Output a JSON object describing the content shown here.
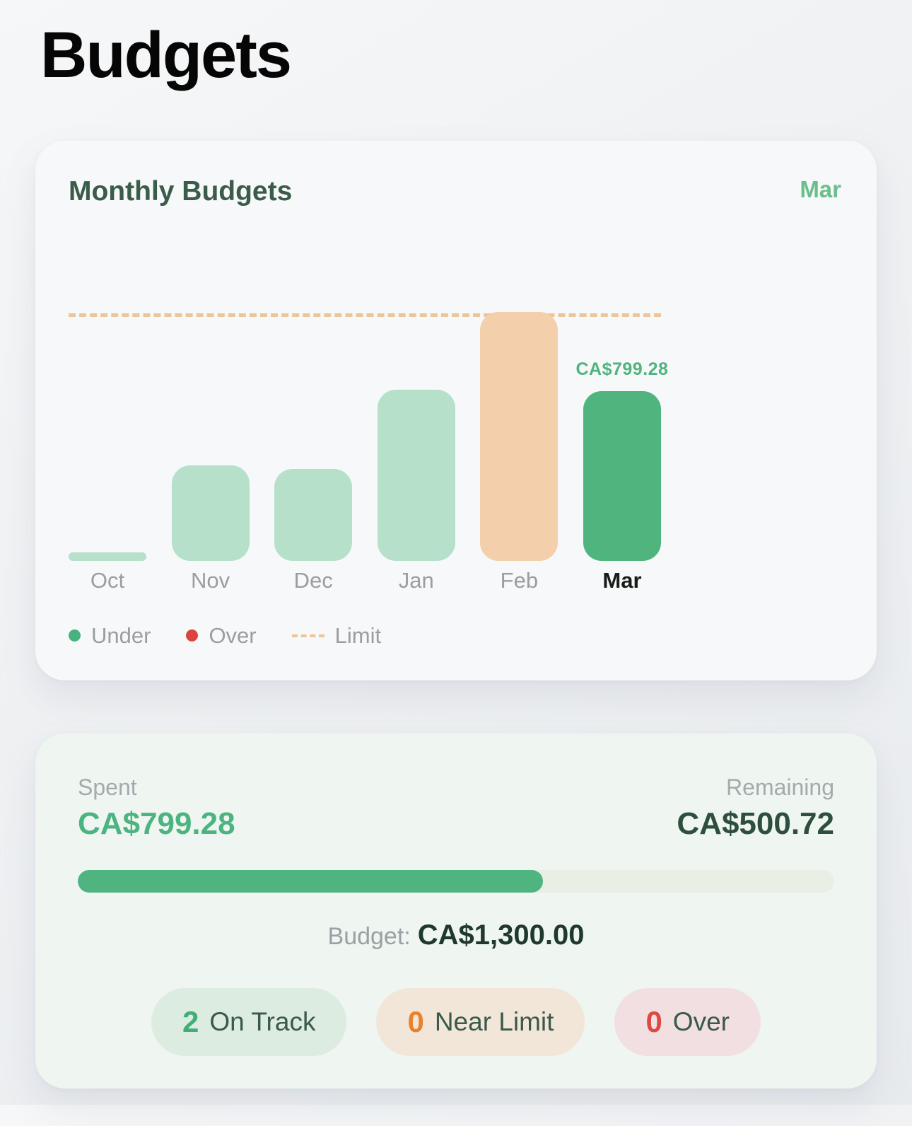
{
  "page": {
    "title": "Budgets"
  },
  "monthly_card": {
    "title": "Monthly Budgets",
    "period_label": "Mar",
    "legend": [
      {
        "label": "Under",
        "type": "dot",
        "color": "#46b27c"
      },
      {
        "label": "Over",
        "type": "dot",
        "color": "#d9453e"
      },
      {
        "label": "Limit",
        "type": "dash",
        "color": "#eec49a"
      }
    ]
  },
  "chart_data": {
    "type": "bar",
    "title": "Monthly Budgets",
    "categories": [
      "Oct",
      "Nov",
      "Dec",
      "Jan",
      "Feb",
      "Mar"
    ],
    "values": [
      40,
      450,
      433,
      807,
      1173,
      799.28
    ],
    "statuses": [
      "under",
      "under",
      "under",
      "under",
      "over",
      "selected"
    ],
    "selected_category": "Mar",
    "selected_value_label": "CA$799.28",
    "limit_value": 1160,
    "ylim": [
      0,
      1335
    ],
    "grid": false,
    "legend_position": "bottom-left",
    "colors": {
      "under": "#b7e0ca",
      "over": "#f3cfab",
      "selected": "#4fb47e",
      "limit_line": "#eec49a"
    }
  },
  "summary_card": {
    "spent_label": "Spent",
    "spent_value": "CA$799.28",
    "remaining_label": "Remaining",
    "remaining_value": "CA$500.72",
    "progress_pct": 61.5,
    "progress_color": "#4fb47f",
    "budget_label": "Budget:",
    "budget_value": "CA$1,300.00",
    "badges": [
      {
        "count": "2",
        "label": "On Track",
        "count_color": "#3fae77",
        "bg": "#dcece1"
      },
      {
        "count": "0",
        "label": "Near Limit",
        "count_color": "#e8822d",
        "bg": "#f2e6d9"
      },
      {
        "count": "0",
        "label": "Over",
        "count_color": "#dd4a43",
        "bg": "#f1dfe1"
      }
    ]
  }
}
